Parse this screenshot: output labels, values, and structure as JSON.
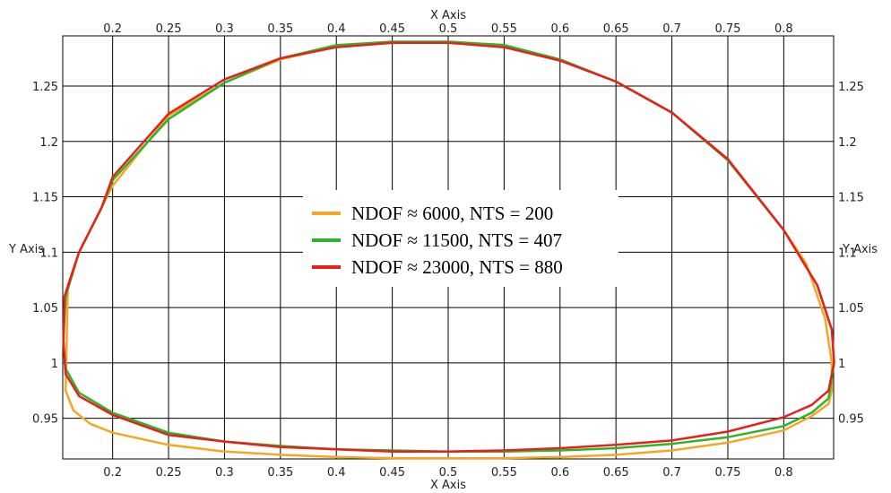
{
  "chart_data": {
    "type": "line",
    "title": "",
    "xlabel": "X Axis",
    "ylabel": "Y Axis",
    "xlim": [
      0.1554,
      0.8446
    ],
    "ylim": [
      0.9133,
      1.2953
    ],
    "grid": true,
    "legend_position": "center",
    "x_ticks": [
      0.2,
      0.25,
      0.3,
      0.35,
      0.4,
      0.45,
      0.5,
      0.55,
      0.6,
      0.65,
      0.7,
      0.75,
      0.8
    ],
    "x_tick_labels": [
      "0.2",
      "0.25",
      "0.3",
      "0.35",
      "0.4",
      "0.45",
      "0.5",
      "0.55",
      "0.6",
      "0.65",
      "0.7",
      "0.75",
      "0.8"
    ],
    "y_ticks": [
      0.95,
      1.0,
      1.05,
      1.1,
      1.15,
      1.2,
      1.25
    ],
    "y_tick_labels": [
      "0.95",
      "1",
      "1.05",
      "1.1",
      "1.15",
      "1.2",
      "1.25"
    ],
    "series": [
      {
        "name": "NDOF ≈ 6000, NTS = 200",
        "color": "#f5a623",
        "x": [
          0.16,
          0.17,
          0.19,
          0.2,
          0.25,
          0.3,
          0.35,
          0.4,
          0.45,
          0.5,
          0.55,
          0.6,
          0.65,
          0.7,
          0.75,
          0.8,
          0.82,
          0.837,
          0.843,
          0.843,
          0.84,
          0.825,
          0.8,
          0.75,
          0.7,
          0.65,
          0.6,
          0.55,
          0.5,
          0.45,
          0.4,
          0.35,
          0.3,
          0.25,
          0.2,
          0.18,
          0.165,
          0.158,
          0.16
        ],
        "y": [
          1.07,
          1.1,
          1.14,
          1.16,
          1.223,
          1.253,
          1.274,
          1.286,
          1.289,
          1.29,
          1.287,
          1.274,
          1.254,
          1.226,
          1.183,
          1.12,
          1.09,
          1.04,
          1.0,
          0.975,
          0.963,
          0.952,
          0.939,
          0.928,
          0.921,
          0.917,
          0.915,
          0.914,
          0.914,
          0.914,
          0.915,
          0.917,
          0.92,
          0.926,
          0.937,
          0.945,
          0.957,
          0.975,
          1.07
        ]
      },
      {
        "name": "NDOF ≈ 11500, NTS = 407",
        "color": "#2cb52c",
        "x": [
          0.158,
          0.17,
          0.19,
          0.2,
          0.25,
          0.3,
          0.35,
          0.4,
          0.45,
          0.5,
          0.55,
          0.6,
          0.65,
          0.7,
          0.75,
          0.8,
          0.83,
          0.843,
          0.845,
          0.84,
          0.825,
          0.8,
          0.75,
          0.7,
          0.65,
          0.6,
          0.55,
          0.5,
          0.45,
          0.4,
          0.35,
          0.3,
          0.25,
          0.2,
          0.17,
          0.158,
          0.156,
          0.158
        ],
        "y": [
          1.06,
          1.1,
          1.14,
          1.165,
          1.22,
          1.253,
          1.275,
          1.287,
          1.29,
          1.29,
          1.287,
          1.274,
          1.254,
          1.226,
          1.183,
          1.12,
          1.07,
          1.03,
          1.0,
          0.968,
          0.955,
          0.943,
          0.933,
          0.927,
          0.923,
          0.921,
          0.92,
          0.92,
          0.921,
          0.922,
          0.925,
          0.929,
          0.937,
          0.955,
          0.973,
          0.995,
          1.02,
          1.06
        ]
      },
      {
        "name": "NDOF ≈ 23000, NTS = 880",
        "color": "#e8201c",
        "x": [
          0.157,
          0.17,
          0.19,
          0.2,
          0.25,
          0.3,
          0.35,
          0.4,
          0.45,
          0.5,
          0.55,
          0.6,
          0.65,
          0.7,
          0.75,
          0.8,
          0.83,
          0.843,
          0.845,
          0.84,
          0.825,
          0.8,
          0.75,
          0.7,
          0.65,
          0.6,
          0.55,
          0.5,
          0.45,
          0.4,
          0.35,
          0.3,
          0.25,
          0.2,
          0.17,
          0.158,
          0.156,
          0.157
        ],
        "y": [
          1.06,
          1.1,
          1.14,
          1.168,
          1.225,
          1.256,
          1.275,
          1.285,
          1.289,
          1.289,
          1.285,
          1.273,
          1.254,
          1.226,
          1.184,
          1.12,
          1.07,
          1.03,
          1.0,
          0.975,
          0.962,
          0.951,
          0.938,
          0.93,
          0.926,
          0.923,
          0.921,
          0.92,
          0.92,
          0.922,
          0.924,
          0.929,
          0.935,
          0.953,
          0.97,
          0.99,
          1.02,
          1.06
        ]
      }
    ]
  }
}
